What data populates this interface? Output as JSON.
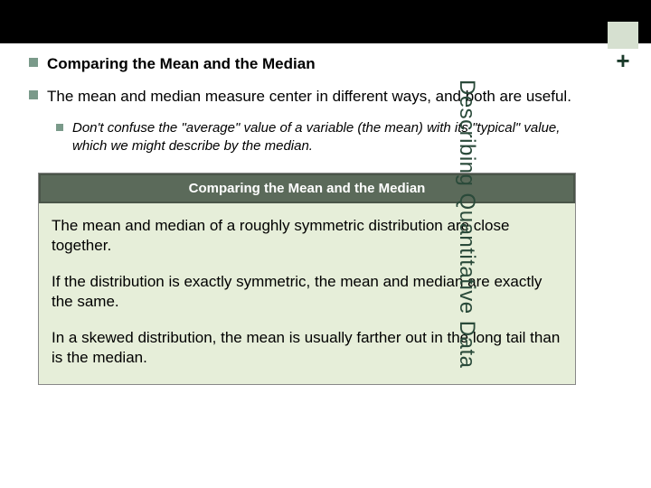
{
  "colors": {
    "top_bar": "#000000",
    "bullet_square": "#7a9a8a",
    "panel_bg": "#e6eed9",
    "panel_header_bg": "#5b6a5a",
    "panel_header_text": "#ffffff",
    "side_accent": "#d6e0d0",
    "side_text": "#2a4a3a",
    "plus_text": "#1a3a2a"
  },
  "typography": {
    "body_font": "Arial",
    "title_size_pt": 17,
    "sub_size_pt": 15,
    "side_label_size_pt": 24
  },
  "bullets": {
    "b1": "Comparing the Mean and the Median",
    "b2": "The mean and median measure center in different ways, and both are useful.",
    "sub1": "Don't confuse the \"average\" value of a variable (the mean) with its \"typical\" value, which we might describe by the median."
  },
  "panel": {
    "header": "Comparing the Mean and the Median",
    "p1": "The mean and median of a roughly symmetric distribution are close together.",
    "p2": "If the distribution is exactly symmetric, the mean and median are exactly the same.",
    "p3": "In a skewed distribution, the mean is usually farther out in the long tail than is the median."
  },
  "side": {
    "plus": "+",
    "label": "Describing Quantitative Data"
  }
}
